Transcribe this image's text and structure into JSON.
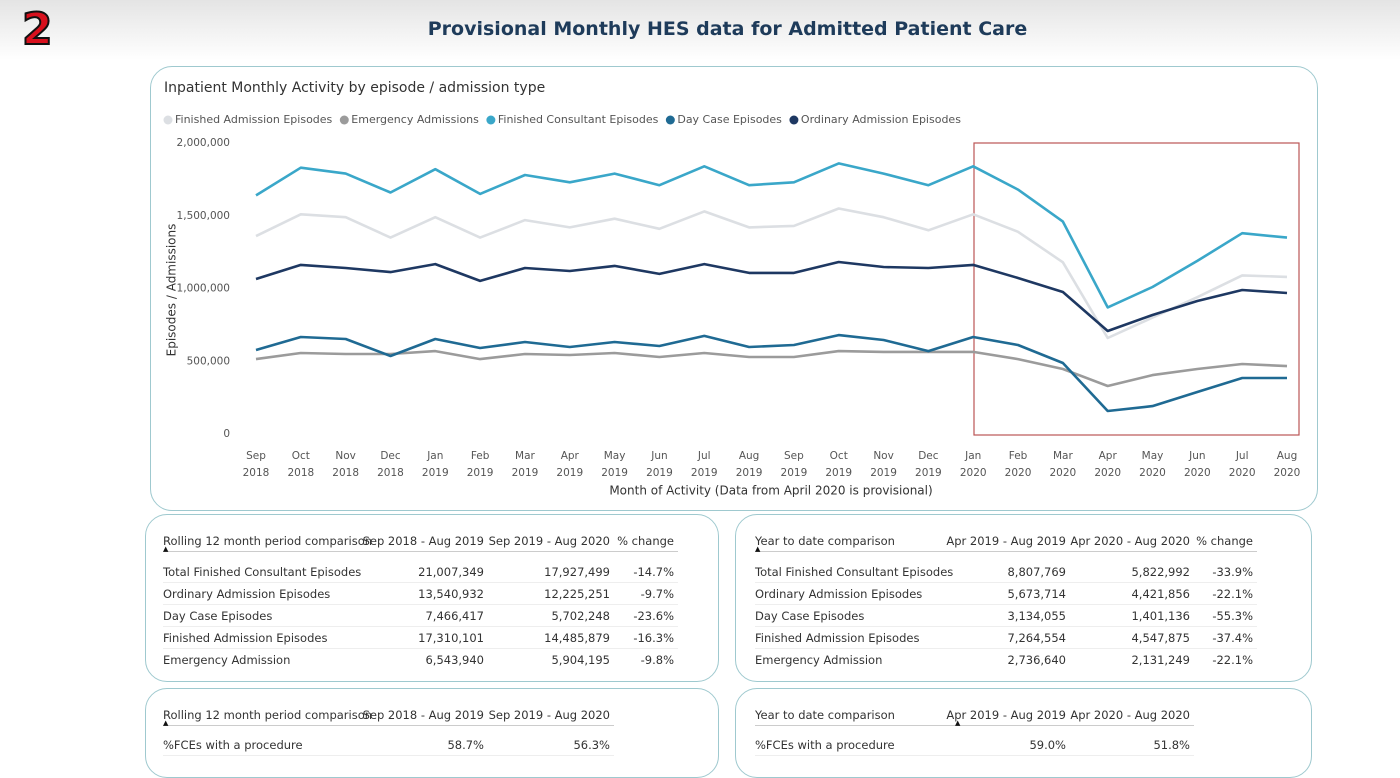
{
  "badge": "2",
  "header": {
    "title": "Provisional Monthly HES data for Admitted Patient Care"
  },
  "chart_data": {
    "type": "line",
    "title": "Inpatient Monthly Activity by episode / admission type",
    "x_label": "Month of Activity (Data from April 2020 is provisional)",
    "y_label": "Episodes / Admissions",
    "categories": [
      [
        "Sep",
        "2018"
      ],
      [
        "Oct",
        "2018"
      ],
      [
        "Nov",
        "2018"
      ],
      [
        "Dec",
        "2018"
      ],
      [
        "Jan",
        "2019"
      ],
      [
        "Feb",
        "2019"
      ],
      [
        "Mar",
        "2019"
      ],
      [
        "Apr",
        "2019"
      ],
      [
        "May",
        "2019"
      ],
      [
        "Jun",
        "2019"
      ],
      [
        "Jul",
        "2019"
      ],
      [
        "Aug",
        "2019"
      ],
      [
        "Sep",
        "2019"
      ],
      [
        "Oct",
        "2019"
      ],
      [
        "Nov",
        "2019"
      ],
      [
        "Dec",
        "2019"
      ],
      [
        "Jan",
        "2020"
      ],
      [
        "Feb",
        "2020"
      ],
      [
        "Mar",
        "2020"
      ],
      [
        "Apr",
        "2020"
      ],
      [
        "May",
        "2020"
      ],
      [
        "Jun",
        "2020"
      ],
      [
        "Jul",
        "2020"
      ],
      [
        "Aug",
        "2020"
      ]
    ],
    "ylim": [
      0,
      2000000
    ],
    "yticks": [
      0,
      {
        "value": 500000,
        "label": "500,000"
      },
      {
        "value": 1000000,
        "label": "1,000,000"
      },
      {
        "value": 1500000,
        "label": "1,500,000"
      },
      {
        "value": 2000000,
        "label": "2,000,000"
      }
    ],
    "grid": false,
    "legend": "top",
    "series": [
      {
        "name": "Finished Admission Episodes",
        "color": "#dcdfe3",
        "values": [
          1360000,
          1510000,
          1490000,
          1350000,
          1490000,
          1350000,
          1470000,
          1420000,
          1480000,
          1410000,
          1530000,
          1420000,
          1430000,
          1550000,
          1490000,
          1400000,
          1510000,
          1390000,
          1180000,
          660000,
          800000,
          940000,
          1090000,
          1080000
        ]
      },
      {
        "name": "Emergency Admissions",
        "color": "#9b9b9b",
        "values": [
          515000,
          557000,
          550000,
          550000,
          570000,
          515000,
          550000,
          543000,
          557000,
          529000,
          557000,
          529000,
          529000,
          570000,
          564000,
          564000,
          564000,
          515000,
          447000,
          330000,
          405000,
          447000,
          481000,
          467000
        ]
      },
      {
        "name": "Finished Consultant Episodes",
        "color": "#3aa7c9",
        "values": [
          1640000,
          1830000,
          1790000,
          1660000,
          1820000,
          1650000,
          1780000,
          1730000,
          1790000,
          1710000,
          1840000,
          1710000,
          1730000,
          1860000,
          1790000,
          1710000,
          1840000,
          1680000,
          1460000,
          870000,
          1010000,
          1190000,
          1380000,
          1350000
        ]
      },
      {
        "name": "Day Case Episodes",
        "color": "#1f6a93",
        "values": [
          577000,
          667000,
          653000,
          536000,
          653000,
          591000,
          632000,
          598000,
          632000,
          605000,
          674000,
          598000,
          612000,
          680000,
          646000,
          570000,
          667000,
          612000,
          488000,
          158000,
          192000,
          289000,
          385000,
          385000
        ]
      },
      {
        "name": "Ordinary Admission Episodes",
        "color": "#1e3862",
        "values": [
          1065000,
          1162000,
          1141000,
          1113000,
          1168000,
          1052000,
          1141000,
          1120000,
          1155000,
          1100000,
          1168000,
          1107000,
          1107000,
          1182000,
          1148000,
          1141000,
          1162000,
          1072000,
          976000,
          708000,
          818000,
          914000,
          990000,
          969000
        ]
      }
    ]
  },
  "tables": [
    {
      "headers": [
        "Rolling 12 month period comparison",
        "Sep 2018 - Aug 2019",
        "Sep 2019 - Aug 2020",
        "% change"
      ],
      "rows": [
        [
          "Total Finished Consultant Episodes",
          "21,007,349",
          "17,927,499",
          "-14.7%"
        ],
        [
          "Ordinary Admission Episodes",
          "13,540,932",
          "12,225,251",
          "-9.7%"
        ],
        [
          "Day Case Episodes",
          "7,466,417",
          "5,702,248",
          "-23.6%"
        ],
        [
          "Finished Admission Episodes",
          "17,310,101",
          "14,485,879",
          "-16.3%"
        ],
        [
          "Emergency Admission",
          "6,543,940",
          "5,904,195",
          "-9.8%"
        ]
      ]
    },
    {
      "headers": [
        "Year to date comparison",
        "Apr 2019 - Aug 2019",
        "Apr 2020 - Aug 2020",
        "% change"
      ],
      "rows": [
        [
          "Total Finished Consultant Episodes",
          "8,807,769",
          "5,822,992",
          "-33.9%"
        ],
        [
          "Ordinary Admission Episodes",
          "5,673,714",
          "4,421,856",
          "-22.1%"
        ],
        [
          "Day Case Episodes",
          "3,134,055",
          "1,401,136",
          "-55.3%"
        ],
        [
          "Finished Admission Episodes",
          "7,264,554",
          "4,547,875",
          "-37.4%"
        ],
        [
          "Emergency Admission",
          "2,736,640",
          "2,131,249",
          "-22.1%"
        ]
      ]
    },
    {
      "headers": [
        "Rolling 12 month period comparison",
        "Sep 2018 - Aug 2019",
        "Sep 2019 - Aug 2020"
      ],
      "rows": [
        [
          "%FCEs with a procedure",
          "58.7%",
          "56.3%"
        ]
      ]
    },
    {
      "headers": [
        "Year to date comparison",
        "Apr 2019 - Aug 2019",
        "Apr 2020 - Aug 2020"
      ],
      "rows": [
        [
          "%FCEs with a procedure",
          "59.0%",
          "51.8%"
        ]
      ]
    }
  ]
}
